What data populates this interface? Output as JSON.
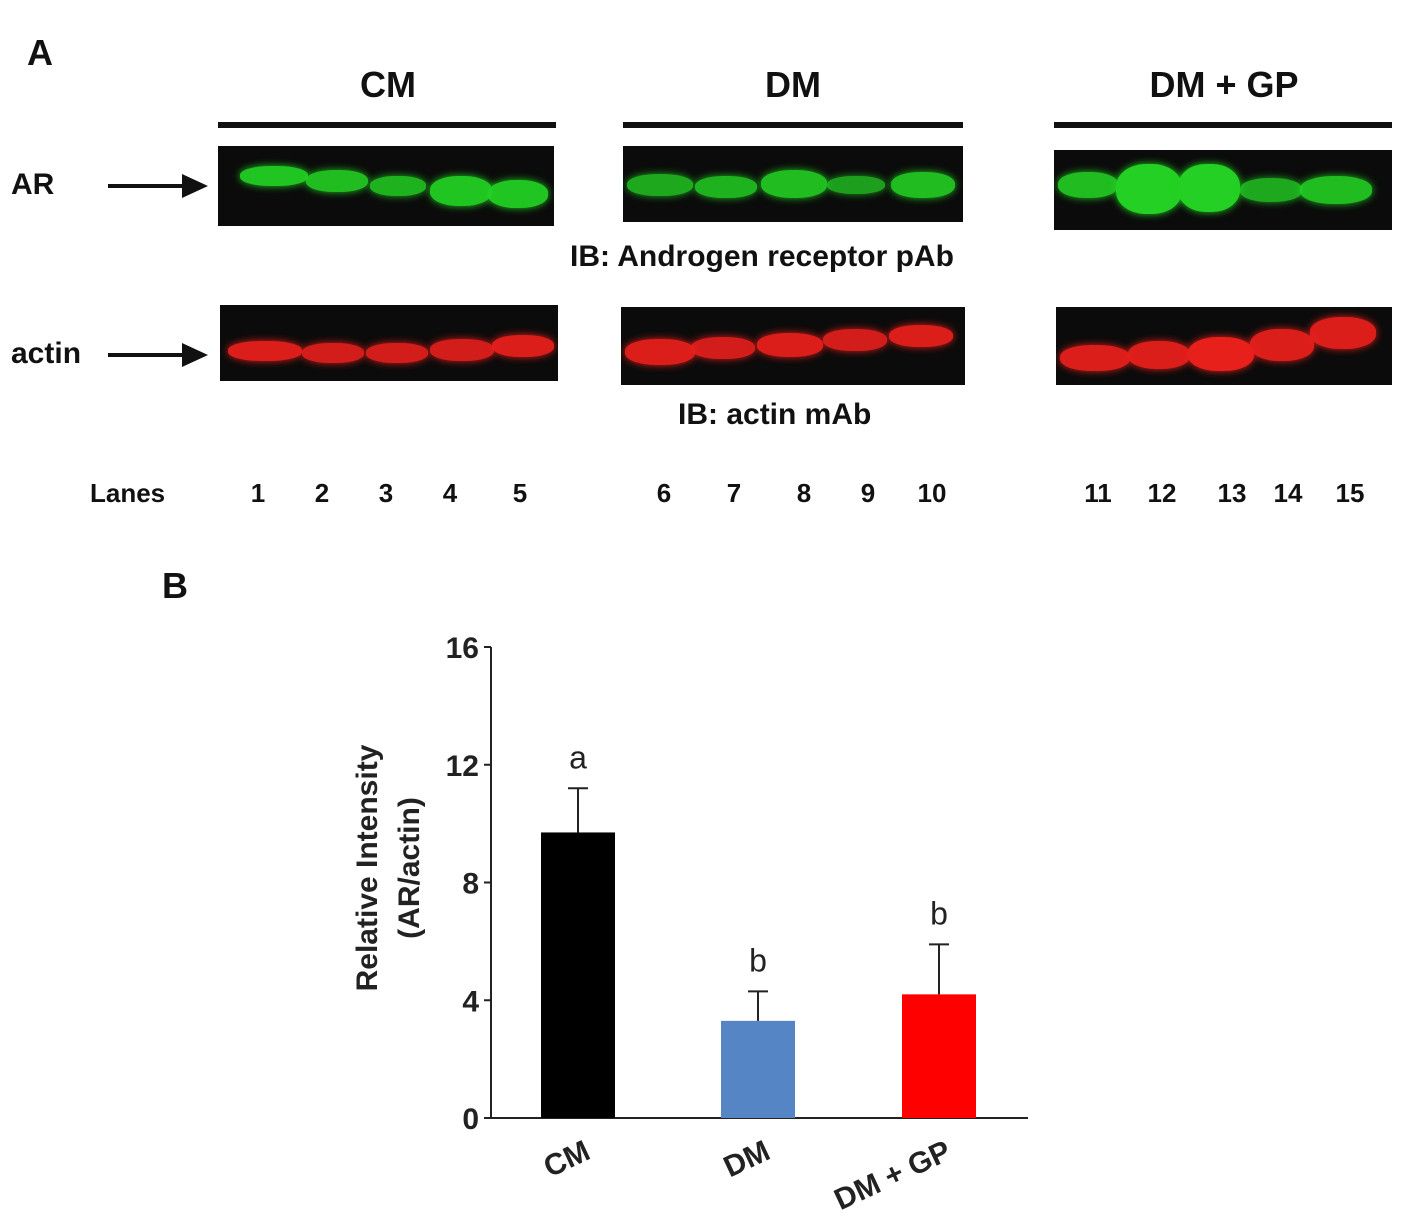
{
  "panels": {
    "a_label": "A",
    "b_label": "B"
  },
  "blot": {
    "groups": [
      "CM",
      "DM",
      "DM + GP"
    ],
    "rows": [
      {
        "label": "AR",
        "color": "#23d023",
        "caption": "IB: Androgen receptor pAb"
      },
      {
        "label": "actin",
        "color": "#e8201c",
        "caption": "IB: actin mAb"
      }
    ],
    "lanes_label": "Lanes",
    "lanes": [
      "1",
      "2",
      "3",
      "4",
      "5",
      "6",
      "7",
      "8",
      "9",
      "10",
      "11",
      "12",
      "13",
      "14",
      "15"
    ]
  },
  "chart_data": {
    "type": "bar",
    "categories": [
      "CM",
      "DM",
      "DM + GP"
    ],
    "values": [
      9.7,
      3.3,
      4.2
    ],
    "errors": [
      1.5,
      1.0,
      1.7
    ],
    "significance": [
      "a",
      "b",
      "b"
    ],
    "colors": [
      "#000000",
      "#5585c5",
      "#ff0000"
    ],
    "ylabel": [
      "Relative Intensity",
      "(AR/actin)"
    ],
    "ylim": [
      0,
      16
    ],
    "yticks": [
      "0",
      "4",
      "8",
      "12",
      "16"
    ],
    "grid": false
  }
}
